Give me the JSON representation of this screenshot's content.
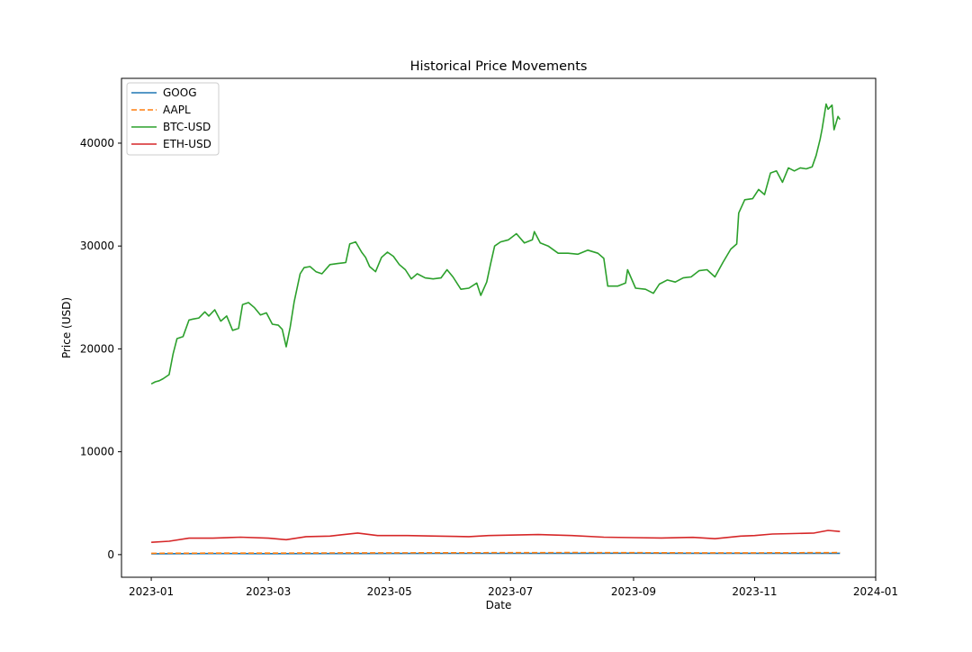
{
  "chart_data": {
    "type": "line",
    "title": "Historical Price Movements",
    "xlabel": "Date",
    "ylabel": "Price (USD)",
    "xlim": [
      "2022-12-17",
      "2024-01-01"
    ],
    "ylim": [
      -2200,
      46300
    ],
    "x_ticks": [
      "2023-01",
      "2023-03",
      "2023-05",
      "2023-07",
      "2023-09",
      "2023-11",
      "2024-01"
    ],
    "y_ticks": [
      0,
      10000,
      20000,
      30000,
      40000
    ],
    "grid": false,
    "legend_position": "top-left",
    "series": [
      {
        "name": "GOOG",
        "color": "#1f77b4",
        "style": "solid",
        "x": [
          "2023-01-01",
          "2023-02-01",
          "2023-03-01",
          "2023-04-01",
          "2023-05-01",
          "2023-06-01",
          "2023-07-01",
          "2023-08-01",
          "2023-09-01",
          "2023-10-01",
          "2023-11-01",
          "2023-12-01",
          "2023-12-14"
        ],
        "values": [
          89,
          99,
          94,
          104,
          107,
          124,
          121,
          132,
          135,
          133,
          125,
          130,
          133
        ]
      },
      {
        "name": "AAPL",
        "color": "#ff7f0e",
        "style": "dashed",
        "x": [
          "2023-01-01",
          "2023-02-01",
          "2023-03-01",
          "2023-04-01",
          "2023-05-01",
          "2023-06-01",
          "2023-07-01",
          "2023-08-01",
          "2023-09-01",
          "2023-10-01",
          "2023-11-01",
          "2023-12-01",
          "2023-12-14"
        ],
        "values": [
          125,
          145,
          148,
          165,
          169,
          180,
          192,
          195,
          188,
          171,
          173,
          190,
          197
        ]
      },
      {
        "name": "BTC-USD",
        "color": "#2ca02c",
        "style": "solid",
        "x": [
          "2023-01-01",
          "2023-01-03",
          "2023-01-05",
          "2023-01-07",
          "2023-01-10",
          "2023-01-12",
          "2023-01-14",
          "2023-01-17",
          "2023-01-20",
          "2023-01-22",
          "2023-01-25",
          "2023-01-28",
          "2023-01-30",
          "2023-02-02",
          "2023-02-05",
          "2023-02-08",
          "2023-02-11",
          "2023-02-14",
          "2023-02-16",
          "2023-02-19",
          "2023-02-22",
          "2023-02-25",
          "2023-02-28",
          "2023-03-03",
          "2023-03-06",
          "2023-03-08",
          "2023-03-10",
          "2023-03-12",
          "2023-03-14",
          "2023-03-17",
          "2023-03-19",
          "2023-03-22",
          "2023-03-25",
          "2023-03-28",
          "2023-04-01",
          "2023-04-05",
          "2023-04-09",
          "2023-04-11",
          "2023-04-14",
          "2023-04-17",
          "2023-04-19",
          "2023-04-21",
          "2023-04-24",
          "2023-04-27",
          "2023-04-30",
          "2023-05-03",
          "2023-05-06",
          "2023-05-09",
          "2023-05-12",
          "2023-05-15",
          "2023-05-19",
          "2023-05-23",
          "2023-05-27",
          "2023-05-30",
          "2023-06-02",
          "2023-06-06",
          "2023-06-10",
          "2023-06-14",
          "2023-06-16",
          "2023-06-19",
          "2023-06-21",
          "2023-06-23",
          "2023-06-26",
          "2023-06-30",
          "2023-07-04",
          "2023-07-08",
          "2023-07-12",
          "2023-07-13",
          "2023-07-16",
          "2023-07-20",
          "2023-07-25",
          "2023-07-30",
          "2023-08-04",
          "2023-08-09",
          "2023-08-14",
          "2023-08-17",
          "2023-08-19",
          "2023-08-24",
          "2023-08-28",
          "2023-08-29",
          "2023-09-02",
          "2023-09-07",
          "2023-09-11",
          "2023-09-14",
          "2023-09-18",
          "2023-09-22",
          "2023-09-26",
          "2023-09-30",
          "2023-10-04",
          "2023-10-08",
          "2023-10-12",
          "2023-10-16",
          "2023-10-20",
          "2023-10-23",
          "2023-10-24",
          "2023-10-27",
          "2023-10-31",
          "2023-11-03",
          "2023-11-06",
          "2023-11-09",
          "2023-11-12",
          "2023-11-15",
          "2023-11-18",
          "2023-11-21",
          "2023-11-24",
          "2023-11-27",
          "2023-11-30",
          "2023-12-02",
          "2023-12-04",
          "2023-12-05",
          "2023-12-07",
          "2023-12-08",
          "2023-12-10",
          "2023-12-11",
          "2023-12-13",
          "2023-12-14"
        ],
        "values": [
          16600,
          16800,
          16900,
          17100,
          17500,
          19500,
          21000,
          21200,
          22800,
          22900,
          23000,
          23600,
          23200,
          23800,
          22700,
          23200,
          21800,
          22000,
          24300,
          24500,
          24000,
          23300,
          23500,
          22400,
          22300,
          21900,
          20200,
          22100,
          24600,
          27300,
          27900,
          28000,
          27500,
          27300,
          28200,
          28300,
          28400,
          30200,
          30400,
          29400,
          28900,
          28000,
          27500,
          28900,
          29400,
          29000,
          28200,
          27700,
          26800,
          27300,
          26900,
          26800,
          26900,
          27700,
          27000,
          25800,
          25900,
          26400,
          25200,
          26500,
          28300,
          30000,
          30400,
          30600,
          31200,
          30300,
          30600,
          31400,
          30300,
          30000,
          29300,
          29300,
          29200,
          29600,
          29300,
          28800,
          26100,
          26100,
          26400,
          27700,
          25900,
          25800,
          25400,
          26300,
          26700,
          26500,
          26900,
          27000,
          27600,
          27700,
          27000,
          28400,
          29700,
          30200,
          33200,
          34500,
          34600,
          35500,
          35000,
          37100,
          37300,
          36200,
          37600,
          37300,
          37600,
          37500,
          37700,
          38800,
          40400,
          41400,
          43800,
          43300,
          43700,
          41300,
          42600,
          42300
        ]
      },
      {
        "name": "ETH-USD",
        "color": "#d62728",
        "style": "solid",
        "x": [
          "2023-01-01",
          "2023-01-10",
          "2023-01-20",
          "2023-02-01",
          "2023-02-15",
          "2023-03-01",
          "2023-03-10",
          "2023-03-20",
          "2023-04-01",
          "2023-04-15",
          "2023-04-25",
          "2023-05-10",
          "2023-05-25",
          "2023-06-10",
          "2023-06-20",
          "2023-07-01",
          "2023-07-15",
          "2023-08-01",
          "2023-08-17",
          "2023-09-01",
          "2023-09-15",
          "2023-10-01",
          "2023-10-12",
          "2023-10-25",
          "2023-11-01",
          "2023-11-10",
          "2023-11-20",
          "2023-12-01",
          "2023-12-08",
          "2023-12-14"
        ],
        "values": [
          1200,
          1300,
          1600,
          1600,
          1700,
          1600,
          1450,
          1750,
          1800,
          2100,
          1850,
          1850,
          1800,
          1750,
          1850,
          1900,
          1950,
          1850,
          1700,
          1650,
          1620,
          1680,
          1550,
          1800,
          1850,
          2000,
          2050,
          2100,
          2350,
          2250
        ]
      }
    ]
  }
}
